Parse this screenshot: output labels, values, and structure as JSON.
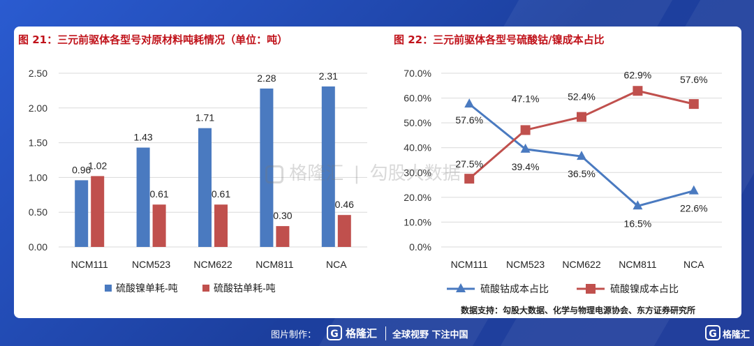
{
  "chart_data": [
    {
      "type": "bar",
      "title": "图 21：三元前驱体各型号对原材料吨耗情况（单位：吨）",
      "categories": [
        "NCM111",
        "NCM523",
        "NCM622",
        "NCM811",
        "NCA"
      ],
      "series": [
        {
          "name": "硫酸镍单耗-吨",
          "values": [
            0.96,
            1.43,
            1.71,
            2.28,
            2.31
          ],
          "labels": [
            "0.96",
            "1.43",
            "1.71",
            "2.28",
            "2.31"
          ],
          "color": "#4a7ac0"
        },
        {
          "name": "硫酸钴单耗-吨",
          "values": [
            1.02,
            0.61,
            0.61,
            0.3,
            0.46
          ],
          "labels": [
            "1.02",
            "0.61",
            "0.61",
            "0.30",
            "0.46"
          ],
          "color": "#c0504d"
        }
      ],
      "yticks": [
        "0.00",
        "0.50",
        "1.00",
        "1.50",
        "2.00",
        "2.50"
      ],
      "ylim": [
        0,
        2.5
      ],
      "grid": true,
      "legend": "bottom"
    },
    {
      "type": "line",
      "title": "图 22：三元前驱体各型号硫酸钴/镍成本占比",
      "categories": [
        "NCM111",
        "NCM523",
        "NCM622",
        "NCM811",
        "NCA"
      ],
      "series": [
        {
          "name": "硫酸钴成本占比",
          "values": [
            57.6,
            39.4,
            36.5,
            16.5,
            22.6
          ],
          "labels": [
            "57.6%",
            "39.4%",
            "36.5%",
            "16.5%",
            "22.6%"
          ],
          "marker": "triangle",
          "color": "#4a7ac0"
        },
        {
          "name": "硫酸镍成本占比",
          "values": [
            27.5,
            47.1,
            52.4,
            62.9,
            57.6
          ],
          "labels": [
            "27.5%",
            "47.1%",
            "52.4%",
            "62.9%",
            "57.6%"
          ],
          "marker": "square",
          "color": "#c0504d"
        }
      ],
      "yticks": [
        "0.0%",
        "10.0%",
        "20.0%",
        "30.0%",
        "40.0%",
        "50.0%",
        "60.0%",
        "70.0%"
      ],
      "ylim": [
        0,
        70
      ],
      "grid": true,
      "legend": "bottom"
    }
  ],
  "source": "数据支持：勾股大数据、化学与物理电源协会、东方证券研究所",
  "watermark": {
    "brand": "格隆汇",
    "text": "勾股大数据"
  },
  "footer": {
    "made_by": "图片制作：",
    "brand": "格隆汇",
    "slogan": "全球视野 下注中国",
    "logo_letter": "G"
  }
}
